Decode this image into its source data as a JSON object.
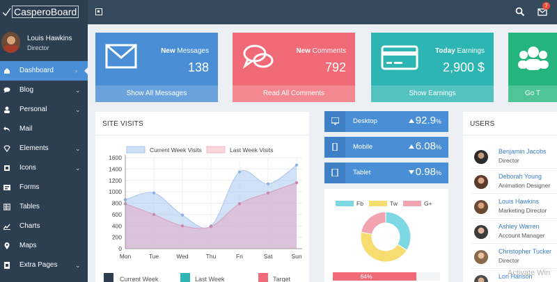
{
  "app": {
    "brand": "CasperoBoard",
    "notification_count": "7"
  },
  "user": {
    "name": "Louis Hawkins",
    "role": "Director"
  },
  "sidebar": {
    "items": [
      {
        "label": "Dashboard",
        "icon": "home-icon",
        "chevron": "›",
        "active": true
      },
      {
        "label": "Blog",
        "icon": "comment-icon",
        "chevron": "⌄"
      },
      {
        "label": "Personal",
        "icon": "user-icon",
        "chevron": "⌄"
      },
      {
        "label": "Mail",
        "icon": "reply-icon",
        "chevron": ""
      },
      {
        "label": "Elements",
        "icon": "diamond-icon",
        "chevron": "⌄"
      },
      {
        "label": "Icons",
        "icon": "icons-icon",
        "chevron": "⌄"
      },
      {
        "label": "Forms",
        "icon": "form-icon",
        "chevron": ""
      },
      {
        "label": "Tables",
        "icon": "table-icon",
        "chevron": ""
      },
      {
        "label": "Charts",
        "icon": "chart-icon",
        "chevron": ""
      },
      {
        "label": "Maps",
        "icon": "map-pin-icon",
        "chevron": ""
      },
      {
        "label": "Extra Pages",
        "icon": "pages-icon",
        "chevron": "⌄"
      }
    ]
  },
  "tiles": [
    {
      "label_bold": "New",
      "label": " Messages",
      "value": "138",
      "link": "Show All Messages",
      "color": "#4a8fd6",
      "color_dark": "#6aa2de"
    },
    {
      "label_bold": "New",
      "label": " Comments",
      "value": "792",
      "link": "Read All Comments",
      "color": "#f06b77",
      "color_dark": "#f38891"
    },
    {
      "label_bold": "Today",
      "label": " Earnings",
      "value": "2,900 $",
      "link": "Show Earnings",
      "color": "#2cb5b2",
      "color_dark": "#52c3c1"
    },
    {
      "label_bold": "",
      "label": "",
      "value": "",
      "link": "Go T",
      "color": "#24b47e",
      "color_dark": "#4fc495"
    }
  ],
  "site_visits": {
    "title": "SITE VISITS",
    "legend_current": "Current Week Visits",
    "legend_last": "Last Week Visits",
    "footer": [
      "Current Week",
      "Last Week",
      "Target"
    ]
  },
  "chart_data": {
    "type": "area",
    "categories": [
      "Mon",
      "Tue",
      "Wed",
      "Thu",
      "Fri",
      "Sat",
      "Sun"
    ],
    "y_ticks": [
      0,
      200,
      400,
      600,
      800,
      1000,
      1200,
      1400,
      1600
    ],
    "ylim": [
      0,
      1600
    ],
    "series": [
      {
        "name": "Current Week Visits",
        "values": [
          860,
          980,
          590,
          400,
          1350,
          1140,
          1470
        ]
      },
      {
        "name": "Last Week Visits",
        "values": [
          790,
          600,
          400,
          390,
          790,
          980,
          1160
        ]
      }
    ]
  },
  "devices": [
    {
      "label": "Desktop",
      "icon": "monitor-icon",
      "trend": "up",
      "value": "92.9",
      "unit": "%"
    },
    {
      "label": "Mobile",
      "icon": "phone-icon",
      "trend": "up",
      "value": "6.08",
      "unit": "%"
    },
    {
      "label": "Tablet",
      "icon": "tablet-icon",
      "trend": "down",
      "value": "0.98",
      "unit": "%"
    }
  ],
  "social": {
    "legend": [
      "Fb",
      "Tw",
      "G+"
    ],
    "colors": [
      "#7ed8e3",
      "#f7dc6f",
      "#f2a3b0"
    ],
    "values": [
      34,
      44,
      22
    ],
    "progress_label": "64%",
    "progress": 0.64
  },
  "users": {
    "title": "USERS",
    "list": [
      {
        "name": "Benjamin Jacobs",
        "role": "Director"
      },
      {
        "name": "Deborah Young",
        "role": "Animation Designer"
      },
      {
        "name": "Louis Hawkins",
        "role": "Marketing Director"
      },
      {
        "name": "Ashley Warren",
        "role": "Account Manager"
      },
      {
        "name": "Christopher Tucker",
        "role": "Director"
      },
      {
        "name": "Lori Hanson",
        "role": ""
      }
    ]
  },
  "watermark": "Activate Win"
}
